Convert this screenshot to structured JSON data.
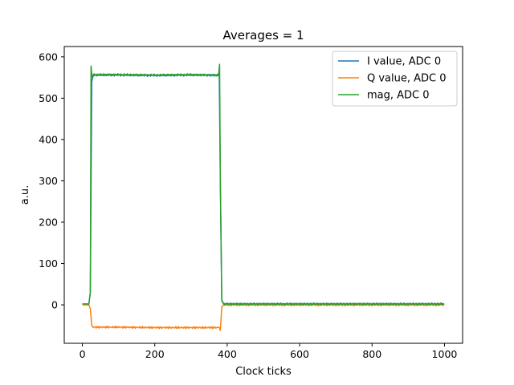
{
  "chart_data": {
    "type": "line",
    "title": "Averages = 1",
    "xlabel": "Clock ticks",
    "ylabel": "a.u.",
    "xlim": [
      -50,
      1050
    ],
    "ylim": [
      -93,
      625
    ],
    "xticks": [
      0,
      200,
      400,
      600,
      800,
      1000
    ],
    "yticks": [
      0,
      100,
      200,
      300,
      400,
      500,
      600
    ],
    "xtick_labels": [
      "0",
      "200",
      "400",
      "600",
      "800",
      "1000"
    ],
    "ytick_labels": [
      "0",
      "100",
      "200",
      "300",
      "400",
      "500",
      "600"
    ],
    "grid": false,
    "legend_position": "top-right",
    "series": [
      {
        "name": "I value, ADC 0",
        "color": "#1f77b4",
        "x": [
          0,
          18,
          22,
          26,
          30,
          100,
          200,
          300,
          378,
          381,
          385,
          390,
          500,
          600,
          700,
          800,
          900,
          999
        ],
        "y": [
          2,
          2,
          30,
          540,
          556,
          556,
          555,
          556,
          556,
          300,
          10,
          2,
          2,
          2,
          2,
          2,
          2,
          2
        ]
      },
      {
        "name": "Q value, ADC 0",
        "color": "#ff7f0e",
        "x": [
          0,
          18,
          22,
          26,
          30,
          100,
          200,
          300,
          378,
          381,
          385,
          390,
          500,
          600,
          700,
          800,
          900,
          999
        ],
        "y": [
          0,
          0,
          -10,
          -50,
          -54,
          -54,
          -55,
          -55,
          -55,
          -62,
          -5,
          0,
          0,
          0,
          0,
          0,
          0,
          0
        ]
      },
      {
        "name": "mag, ADC 0",
        "color": "#2ca02c",
        "x": [
          0,
          18,
          22,
          24,
          27,
          30,
          100,
          200,
          300,
          376,
          379,
          381,
          385,
          390,
          500,
          600,
          700,
          800,
          900,
          999
        ],
        "y": [
          2,
          2,
          30,
          578,
          550,
          557,
          557,
          556,
          557,
          555,
          582,
          300,
          12,
          2,
          2,
          2,
          2,
          2,
          2,
          2
        ]
      }
    ]
  }
}
